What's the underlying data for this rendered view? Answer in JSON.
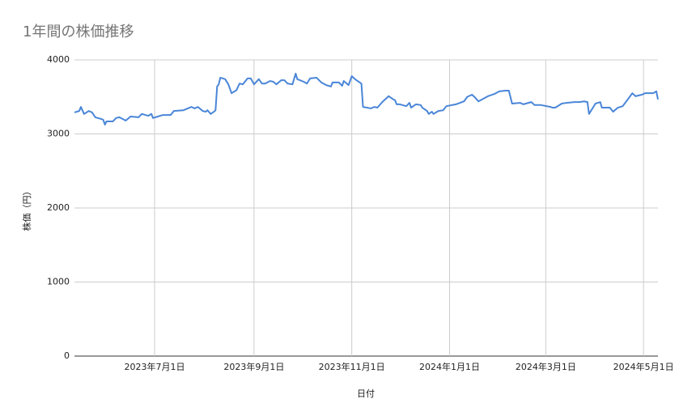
{
  "chart_data": {
    "type": "line",
    "title": "1年間の株価推移",
    "x_label": "日付",
    "y_label": "株価（円）",
    "x": [
      "2023-05-12",
      "2023-05-15",
      "2023-05-16",
      "2023-05-18",
      "2023-05-21",
      "2023-05-23",
      "2023-05-25",
      "2023-05-29",
      "2023-05-30",
      "2023-05-31",
      "2023-06-01",
      "2023-06-05",
      "2023-06-07",
      "2023-06-09",
      "2023-06-13",
      "2023-06-16",
      "2023-06-21",
      "2023-06-23",
      "2023-06-27",
      "2023-06-29",
      "2023-06-30",
      "2023-07-03",
      "2023-07-06",
      "2023-07-11",
      "2023-07-13",
      "2023-07-19",
      "2023-07-24",
      "2023-07-26",
      "2023-07-28",
      "2023-07-31",
      "2023-08-02",
      "2023-08-03",
      "2023-08-05",
      "2023-08-07",
      "2023-08-08",
      "2023-08-09",
      "2023-08-10",
      "2023-08-11",
      "2023-08-14",
      "2023-08-16",
      "2023-08-18",
      "2023-08-21",
      "2023-08-23",
      "2023-08-25",
      "2023-08-28",
      "2023-08-30",
      "2023-09-01",
      "2023-09-04",
      "2023-09-06",
      "2023-09-08",
      "2023-09-11",
      "2023-09-13",
      "2023-09-15",
      "2023-09-18",
      "2023-09-20",
      "2023-09-22",
      "2023-09-25",
      "2023-09-27",
      "2023-09-28",
      "2023-10-02",
      "2023-10-04",
      "2023-10-06",
      "2023-10-10",
      "2023-10-13",
      "2023-10-16",
      "2023-10-19",
      "2023-10-20",
      "2023-10-24",
      "2023-10-26",
      "2023-10-27",
      "2023-10-30",
      "2023-11-01",
      "2023-11-03",
      "2023-11-07",
      "2023-11-08",
      "2023-11-13",
      "2023-11-15",
      "2023-11-17",
      "2023-11-20",
      "2023-11-24",
      "2023-11-27",
      "2023-11-28",
      "2023-11-29",
      "2023-12-01",
      "2023-12-05",
      "2023-12-07",
      "2023-12-08",
      "2023-12-11",
      "2023-12-14",
      "2023-12-15",
      "2023-12-18",
      "2023-12-19",
      "2023-12-21",
      "2023-12-22",
      "2023-12-25",
      "2023-12-28",
      "2023-12-30",
      "2024-01-05",
      "2024-01-10",
      "2024-01-12",
      "2024-01-15",
      "2024-01-17",
      "2024-01-19",
      "2024-01-25",
      "2024-01-29",
      "2024-02-01",
      "2024-02-05",
      "2024-02-07",
      "2024-02-09",
      "2024-02-14",
      "2024-02-16",
      "2024-02-21",
      "2024-02-23",
      "2024-02-27",
      "2024-03-04",
      "2024-03-05",
      "2024-03-07",
      "2024-03-11",
      "2024-03-14",
      "2024-03-19",
      "2024-03-22",
      "2024-03-25",
      "2024-03-27",
      "2024-03-28",
      "2024-04-01",
      "2024-04-04",
      "2024-04-05",
      "2024-04-10",
      "2024-04-12",
      "2024-04-15",
      "2024-04-18",
      "2024-04-22",
      "2024-04-24",
      "2024-04-26",
      "2024-04-30",
      "2024-05-02",
      "2024-05-07",
      "2024-05-09",
      "2024-05-10"
    ],
    "series": [
      {
        "name": "株価",
        "color": "#4a86d8",
        "values": [
          3290,
          3310,
          3365,
          3270,
          3310,
          3290,
          3225,
          3200,
          3190,
          3125,
          3170,
          3170,
          3215,
          3225,
          3180,
          3235,
          3225,
          3270,
          3245,
          3270,
          3215,
          3235,
          3255,
          3255,
          3310,
          3320,
          3365,
          3345,
          3365,
          3310,
          3300,
          3320,
          3270,
          3300,
          3320,
          3640,
          3670,
          3760,
          3740,
          3670,
          3550,
          3590,
          3680,
          3670,
          3750,
          3750,
          3670,
          3740,
          3680,
          3680,
          3715,
          3705,
          3670,
          3725,
          3725,
          3680,
          3670,
          3815,
          3740,
          3705,
          3680,
          3750,
          3760,
          3695,
          3660,
          3640,
          3695,
          3695,
          3650,
          3715,
          3660,
          3780,
          3740,
          3680,
          3365,
          3345,
          3365,
          3355,
          3430,
          3510,
          3465,
          3455,
          3400,
          3400,
          3375,
          3420,
          3355,
          3400,
          3390,
          3355,
          3310,
          3270,
          3300,
          3270,
          3310,
          3320,
          3375,
          3400,
          3440,
          3500,
          3530,
          3490,
          3440,
          3510,
          3540,
          3575,
          3585,
          3585,
          3410,
          3420,
          3400,
          3430,
          3390,
          3390,
          3365,
          3355,
          3355,
          3410,
          3420,
          3430,
          3430,
          3440,
          3430,
          3270,
          3410,
          3430,
          3355,
          3355,
          3300,
          3355,
          3375,
          3490,
          3550,
          3510,
          3530,
          3550,
          3550,
          3575,
          3465
        ]
      }
    ],
    "xlim": [
      "2023-05-12",
      "2024-05-10"
    ],
    "xticks": [
      {
        "value": "2023-07-01",
        "label": "2023年7月1日"
      },
      {
        "value": "2023-09-01",
        "label": "2023年9月1日"
      },
      {
        "value": "2023-11-01",
        "label": "2023年11月1日"
      },
      {
        "value": "2024-01-01",
        "label": "2024年1月1日"
      },
      {
        "value": "2024-03-01",
        "label": "2024年3月1日"
      },
      {
        "value": "2024-05-01",
        "label": "2024年5月1日"
      }
    ],
    "ylim": [
      0,
      4000
    ],
    "yticks": [
      0,
      1000,
      2000,
      3000,
      4000
    ],
    "grid": true
  }
}
